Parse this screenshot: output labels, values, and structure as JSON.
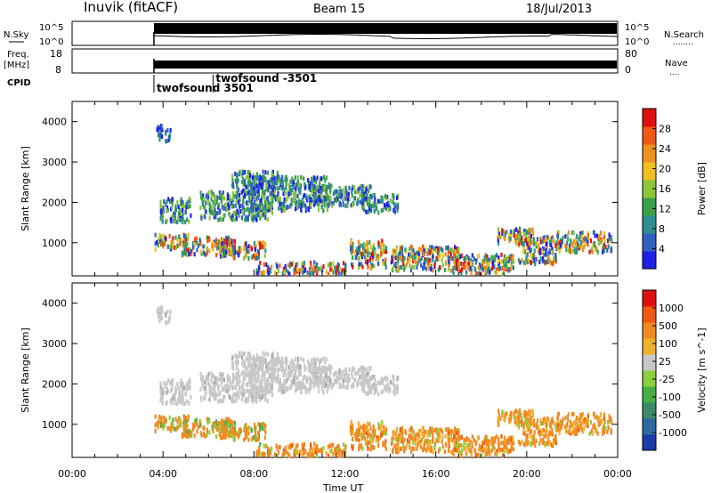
{
  "chart_data": {
    "type": "heatmap",
    "header": {
      "site": "Inuvik (fitACF)",
      "beam": "Beam 15",
      "date": "18/Jul/2013"
    },
    "top_panels": {
      "noise": {
        "left_label": "N.Sky",
        "right_label": "N.Search",
        "right_legend": "........",
        "left_ticks": [
          "10^5",
          "10^0"
        ],
        "right_ticks": [
          "10^5",
          "10^0"
        ]
      },
      "freq": {
        "left_label_1": "Freq.",
        "left_label_2": "[MHz]",
        "left_ticks": [
          "18",
          "8"
        ],
        "right_label": "Nave",
        "right_legend": "....",
        "right_ticks": [
          "80",
          "0"
        ]
      },
      "cpid": {
        "label": "CPID",
        "entries": [
          {
            "text": "twofsound 3501",
            "time_hours": 3.6
          },
          {
            "text": "twofsound -3501",
            "time_hours": 6.2
          }
        ]
      },
      "data_start_hours": 3.6
    },
    "x_axis": {
      "label": "Time UT",
      "range_hours": [
        0,
        24
      ],
      "ticks": [
        "00:00",
        "04:00",
        "08:00",
        "12:00",
        "16:00",
        "20:00",
        "00:00"
      ]
    },
    "panels": [
      {
        "name": "power",
        "ylabel": "Slant Range [km]",
        "yticks": [
          "1000",
          "2000",
          "3000",
          "4000"
        ],
        "ylim_km": [
          180,
          4500
        ],
        "colorbar": {
          "label": "Power [dB]",
          "ticks": [
            "4",
            "8",
            "12",
            "16",
            "20",
            "24",
            "28"
          ],
          "range": [
            0,
            30
          ],
          "colors": [
            "#1f1fe6",
            "#3060c0",
            "#2f8f8f",
            "#3aa04a",
            "#8cc43a",
            "#f0c020",
            "#f09020",
            "#f05a10",
            "#e01010"
          ]
        }
      },
      {
        "name": "velocity",
        "ylabel": "Slant Range [km]",
        "yticks": [
          "1000",
          "2000",
          "3000",
          "4000"
        ],
        "ylim_km": [
          180,
          4500
        ],
        "colorbar": {
          "label": "Velocity [m s^-1]",
          "ticks": [
            "1000",
            "500",
            "100",
            "25",
            "-25",
            "-100",
            "-500",
            "-1000"
          ],
          "colors": [
            "#1c3aa8",
            "#2a6aa0",
            "#3a8a6a",
            "#46b046",
            "#8ad040",
            "#c8c8c8",
            "#f0b030",
            "#f08a20",
            "#f05a10",
            "#e01010"
          ]
        }
      }
    ]
  }
}
